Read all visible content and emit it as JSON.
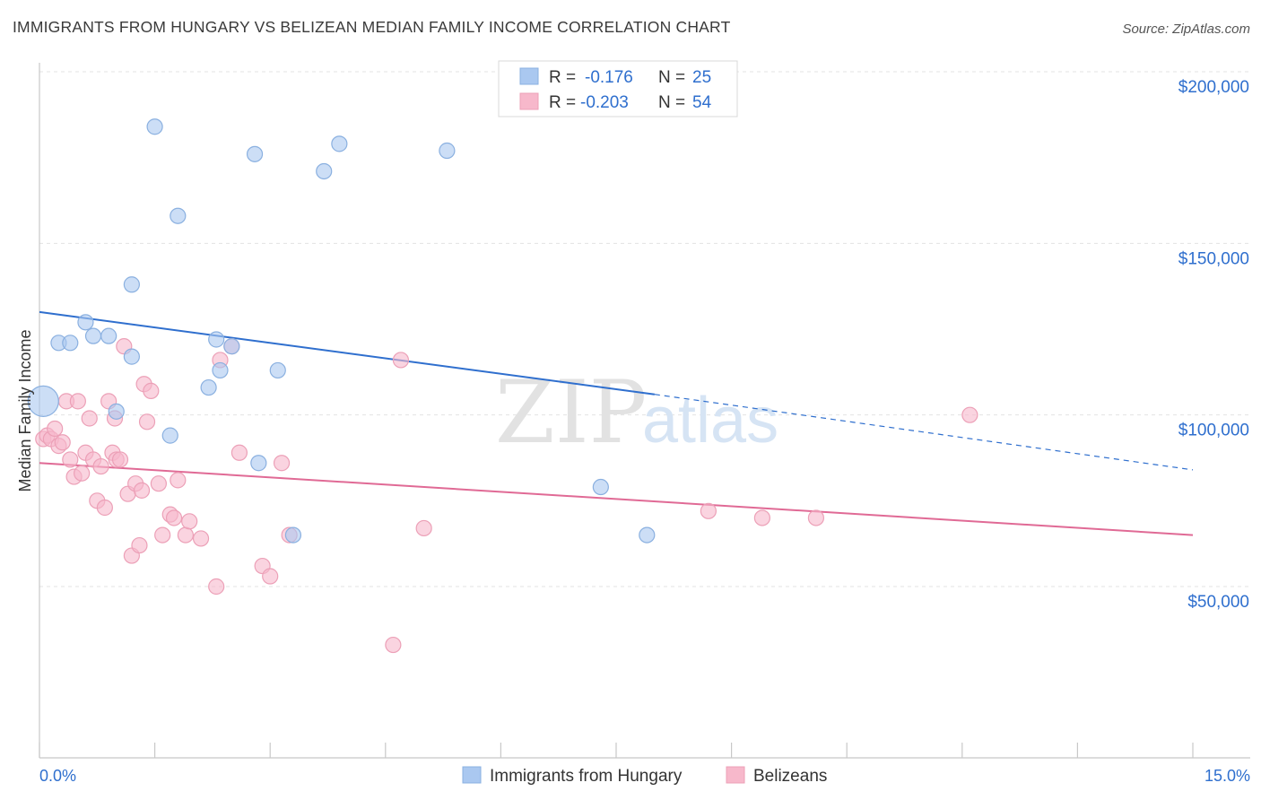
{
  "title": "IMMIGRANTS FROM HUNGARY VS BELIZEAN MEDIAN FAMILY INCOME CORRELATION CHART",
  "source": "Source: ZipAtlas.com",
  "watermark": {
    "zip": "ZIP",
    "atlas": "atlas"
  },
  "stats": [
    {
      "r_label": "R =",
      "r_value": "-0.176",
      "n_label": "N =",
      "n_value": "25",
      "color": "#aac8f0"
    },
    {
      "r_label": "R =",
      "r_value": "-0.203",
      "n_label": "N =",
      "n_value": "54",
      "color": "#f7b8cb"
    }
  ],
  "chart_data": {
    "type": "scatter",
    "xlabel": "",
    "ylabel": "Median Family Income",
    "xlim": [
      0,
      15
    ],
    "ylim": [
      0,
      210000
    ],
    "x_tick_labels": [
      "0.0%",
      "15.0%"
    ],
    "y_ticks": [
      50000,
      100000,
      150000,
      200000
    ],
    "y_tick_labels": [
      "$50,000",
      "$100,000",
      "$150,000",
      "$200,000"
    ],
    "grid": true,
    "legend_position": "bottom-center",
    "series": [
      {
        "name": "Immigrants from Hungary",
        "color": "#aac8f0",
        "stroke": "#8ab0e0",
        "line_color": "#2f6fce",
        "trend": {
          "x0": 0,
          "y0": 130000,
          "x1": 8.0,
          "y1": 106000,
          "x_dash_end": 15,
          "y_dash_end": 84000
        },
        "points": [
          {
            "x": 0.05,
            "y": 104000,
            "size": "large"
          },
          {
            "x": 0.25,
            "y": 121000
          },
          {
            "x": 0.4,
            "y": 121000
          },
          {
            "x": 0.6,
            "y": 127000
          },
          {
            "x": 0.7,
            "y": 123000
          },
          {
            "x": 0.9,
            "y": 123000
          },
          {
            "x": 1.0,
            "y": 101000
          },
          {
            "x": 1.2,
            "y": 117000
          },
          {
            "x": 1.2,
            "y": 138000
          },
          {
            "x": 1.5,
            "y": 184000
          },
          {
            "x": 1.7,
            "y": 94000
          },
          {
            "x": 1.8,
            "y": 158000
          },
          {
            "x": 2.2,
            "y": 108000
          },
          {
            "x": 2.3,
            "y": 122000
          },
          {
            "x": 2.35,
            "y": 113000
          },
          {
            "x": 2.5,
            "y": 120000
          },
          {
            "x": 2.8,
            "y": 176000
          },
          {
            "x": 2.85,
            "y": 86000
          },
          {
            "x": 3.1,
            "y": 113000
          },
          {
            "x": 3.3,
            "y": 65000
          },
          {
            "x": 3.7,
            "y": 171000
          },
          {
            "x": 3.9,
            "y": 179000
          },
          {
            "x": 5.3,
            "y": 177000
          },
          {
            "x": 7.3,
            "y": 79000
          },
          {
            "x": 7.9,
            "y": 65000
          }
        ]
      },
      {
        "name": "Belizeans",
        "color": "#f7b8cb",
        "stroke": "#eca0b7",
        "line_color": "#e06a95",
        "trend": {
          "x0": 0,
          "y0": 86000,
          "x1": 15,
          "y1": 65000
        },
        "points": [
          {
            "x": 0.05,
            "y": 93000
          },
          {
            "x": 0.1,
            "y": 94000
          },
          {
            "x": 0.15,
            "y": 93000
          },
          {
            "x": 0.2,
            "y": 96000
          },
          {
            "x": 0.25,
            "y": 91000
          },
          {
            "x": 0.3,
            "y": 92000
          },
          {
            "x": 0.35,
            "y": 104000
          },
          {
            "x": 0.4,
            "y": 87000
          },
          {
            "x": 0.45,
            "y": 82000
          },
          {
            "x": 0.5,
            "y": 104000
          },
          {
            "x": 0.55,
            "y": 83000
          },
          {
            "x": 0.6,
            "y": 89000
          },
          {
            "x": 0.65,
            "y": 99000
          },
          {
            "x": 0.7,
            "y": 87000
          },
          {
            "x": 0.75,
            "y": 75000
          },
          {
            "x": 0.8,
            "y": 85000
          },
          {
            "x": 0.85,
            "y": 73000
          },
          {
            "x": 0.9,
            "y": 104000
          },
          {
            "x": 0.95,
            "y": 89000
          },
          {
            "x": 0.98,
            "y": 99000
          },
          {
            "x": 1.0,
            "y": 87000
          },
          {
            "x": 1.05,
            "y": 87000
          },
          {
            "x": 1.1,
            "y": 120000
          },
          {
            "x": 1.15,
            "y": 77000
          },
          {
            "x": 1.2,
            "y": 59000
          },
          {
            "x": 1.25,
            "y": 80000
          },
          {
            "x": 1.3,
            "y": 62000
          },
          {
            "x": 1.33,
            "y": 78000
          },
          {
            "x": 1.36,
            "y": 109000
          },
          {
            "x": 1.4,
            "y": 98000
          },
          {
            "x": 1.45,
            "y": 107000
          },
          {
            "x": 1.55,
            "y": 80000
          },
          {
            "x": 1.6,
            "y": 65000
          },
          {
            "x": 1.7,
            "y": 71000
          },
          {
            "x": 1.75,
            "y": 70000
          },
          {
            "x": 1.8,
            "y": 81000
          },
          {
            "x": 1.9,
            "y": 65000
          },
          {
            "x": 1.95,
            "y": 69000
          },
          {
            "x": 2.1,
            "y": 64000
          },
          {
            "x": 2.3,
            "y": 50000
          },
          {
            "x": 2.35,
            "y": 116000
          },
          {
            "x": 2.5,
            "y": 120000
          },
          {
            "x": 2.6,
            "y": 89000
          },
          {
            "x": 2.9,
            "y": 56000
          },
          {
            "x": 3.0,
            "y": 53000
          },
          {
            "x": 3.15,
            "y": 86000
          },
          {
            "x": 3.25,
            "y": 65000
          },
          {
            "x": 4.6,
            "y": 33000
          },
          {
            "x": 4.7,
            "y": 116000
          },
          {
            "x": 5.0,
            "y": 67000
          },
          {
            "x": 8.7,
            "y": 72000
          },
          {
            "x": 9.4,
            "y": 70000
          },
          {
            "x": 10.1,
            "y": 70000
          },
          {
            "x": 12.1,
            "y": 100000
          }
        ]
      }
    ]
  }
}
